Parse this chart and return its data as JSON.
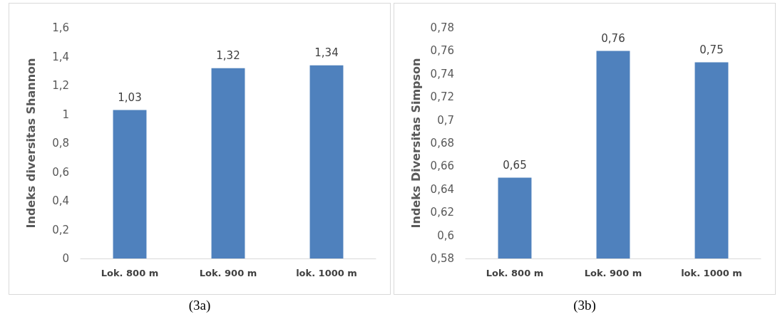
{
  "chart_data": [
    {
      "type": "bar",
      "ylabel": "Indeks diversitas Shannon",
      "categories": [
        "Lok. 800 m",
        "Lok. 900 m",
        "lok. 1000 m"
      ],
      "values": [
        1.03,
        1.32,
        1.34
      ],
      "value_labels": [
        "1,03",
        "1,32",
        "1,34"
      ],
      "color": "#4f81bd",
      "ylim": [
        0,
        1.6
      ],
      "yticks": [
        0,
        {
          "value": 0.2,
          "label": "0,2"
        },
        {
          "value": 0.4,
          "label": "0,4"
        },
        {
          "value": 0.6,
          "label": "0,6"
        },
        {
          "value": 0.8,
          "label": "0,8"
        },
        1,
        {
          "value": 1.2,
          "label": "1,2"
        },
        {
          "value": 1.4,
          "label": "1,4"
        },
        {
          "value": 1.6,
          "label": "1,6"
        }
      ],
      "grid": false,
      "annotations": [
        "(3a)"
      ]
    },
    {
      "type": "bar",
      "ylabel": "Indeks Diversitas Simpson",
      "categories": [
        "Lok. 800 m",
        "Lok. 900 m",
        "lok. 1000 m"
      ],
      "values": [
        0.65,
        0.76,
        0.75
      ],
      "value_labels": [
        "0,65",
        "0,76",
        "0,75"
      ],
      "color": "#4f81bd",
      "ylim": [
        0.58,
        0.78
      ],
      "yticks": [
        {
          "value": 0.58,
          "label": "0,58"
        },
        {
          "value": 0.6,
          "label": "0,6"
        },
        {
          "value": 0.62,
          "label": "0,62"
        },
        {
          "value": 0.64,
          "label": "0,64"
        },
        {
          "value": 0.66,
          "label": "0,66"
        },
        {
          "value": 0.68,
          "label": "0,68"
        },
        {
          "value": 0.7,
          "label": "0,7"
        },
        {
          "value": 0.72,
          "label": "0,72"
        },
        {
          "value": 0.74,
          "label": "0,74"
        },
        {
          "value": 0.76,
          "label": "0,76"
        },
        {
          "value": 0.78,
          "label": "0,78"
        }
      ],
      "grid": false,
      "annotations": [
        "(3b)"
      ]
    }
  ]
}
